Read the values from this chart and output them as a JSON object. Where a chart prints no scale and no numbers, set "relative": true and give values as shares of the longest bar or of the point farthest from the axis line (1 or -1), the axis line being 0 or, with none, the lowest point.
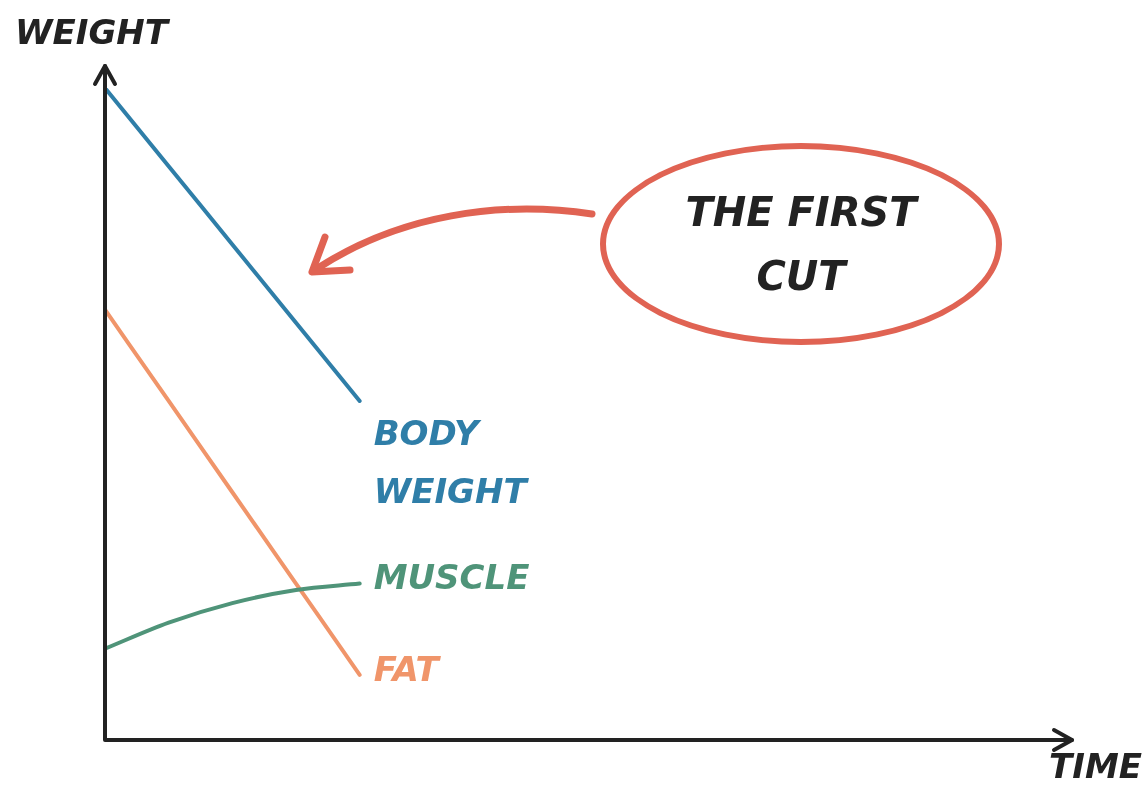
{
  "chart_data": {
    "type": "line",
    "relative": true,
    "xlabel": "TIME",
    "ylabel": "WEIGHT",
    "categories": [
      null,
      null,
      null,
      null,
      null,
      null,
      null,
      null,
      null,
      null,
      null,
      null,
      null,
      null,
      null,
      null
    ],
    "series": [
      {
        "name": "BODY WEIGHT",
        "color": "#2f7ea8",
        "values": [
          1,
          0.88,
          0.76,
          0.64,
          0.52,
          null,
          null,
          null,
          null,
          null,
          null,
          null,
          null,
          null,
          null,
          null
        ]
      },
      {
        "name": "MUSCLE",
        "color": "#4f9479",
        "values": [
          0.14,
          0.18,
          0.21,
          0.23,
          0.24,
          null,
          null,
          null,
          null,
          null,
          null,
          null,
          null,
          null,
          null,
          null
        ]
      },
      {
        "name": "FAT",
        "color": "#f0956a",
        "values": [
          0.66,
          0.52,
          0.38,
          0.24,
          0.1,
          null,
          null,
          null,
          null,
          null,
          null,
          null,
          null,
          null,
          null,
          null
        ]
      }
    ],
    "annotations": [
      "THE FIRST CUT"
    ],
    "legend": false,
    "marker": "none",
    "line_style": "solid"
  }
}
